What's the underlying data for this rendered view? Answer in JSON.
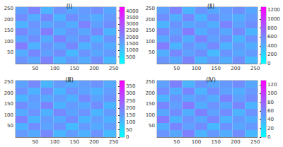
{
  "chart_data": [
    {
      "type": "heatmap",
      "title": "(Ⅰ)",
      "xlim": [
        0,
        256
      ],
      "ylim": [
        0,
        256
      ],
      "xticks": [
        50,
        100,
        150,
        200,
        250
      ],
      "yticks": [
        50,
        100,
        150,
        200,
        250
      ],
      "x_edges": [
        0,
        32,
        64,
        96,
        128,
        160,
        192,
        224,
        256
      ],
      "y_edges": [
        0,
        32,
        64,
        96,
        128,
        160,
        192,
        224,
        256
      ],
      "cells": [
        [
          1800,
          1500,
          2100,
          1300,
          1700,
          1400,
          1900,
          1200
        ],
        [
          1400,
          2000,
          1600,
          1900,
          1200,
          1800,
          1500,
          1700
        ],
        [
          2200,
          1300,
          1800,
          1500,
          2000,
          1300,
          1700,
          1400
        ],
        [
          1500,
          1900,
          1400,
          2100,
          1600,
          1900,
          1300,
          1800
        ],
        [
          2000,
          1600,
          2200,
          1400,
          1800,
          1500,
          2000,
          1300
        ],
        [
          1300,
          1800,
          1500,
          1700,
          1400,
          2100,
          1600,
          1900
        ],
        [
          1900,
          1400,
          2000,
          1300,
          1900,
          1600,
          1400,
          1700
        ],
        [
          1600,
          2100,
          1300,
          1800,
          1500,
          1700,
          1900,
          1500
        ]
      ],
      "colorbar": {
        "range": [
          0,
          4300
        ],
        "ticks": [
          500,
          1000,
          1500,
          2000,
          2500,
          3000,
          3500,
          4000
        ],
        "colors": [
          "#00ffff",
          "#ff00ff"
        ]
      }
    },
    {
      "type": "heatmap",
      "title": "(Ⅱ)",
      "xlim": [
        0,
        256
      ],
      "ylim": [
        0,
        256
      ],
      "xticks": [
        50,
        100,
        150,
        200,
        250
      ],
      "yticks": [
        50,
        100,
        150,
        200,
        250
      ],
      "x_edges": [
        0,
        32,
        64,
        96,
        128,
        160,
        192,
        224,
        256
      ],
      "y_edges": [
        0,
        32,
        64,
        96,
        128,
        160,
        192,
        224,
        256
      ],
      "cells": [
        [
          530,
          440,
          620,
          380,
          500,
          410,
          560,
          350
        ],
        [
          410,
          590,
          470,
          560,
          350,
          530,
          440,
          500
        ],
        [
          650,
          380,
          530,
          440,
          590,
          380,
          500,
          410
        ],
        [
          440,
          560,
          410,
          620,
          470,
          560,
          380,
          530
        ],
        [
          590,
          470,
          650,
          410,
          530,
          440,
          590,
          380
        ],
        [
          380,
          530,
          440,
          500,
          410,
          620,
          470,
          560
        ],
        [
          560,
          410,
          590,
          380,
          560,
          470,
          410,
          500
        ],
        [
          470,
          620,
          380,
          530,
          440,
          500,
          560,
          440
        ]
      ],
      "colorbar": {
        "range": [
          0,
          1270
        ],
        "ticks": [
          0,
          200,
          400,
          600,
          800,
          1000,
          1200
        ],
        "colors": [
          "#00ffff",
          "#ff00ff"
        ]
      }
    },
    {
      "type": "heatmap",
      "title": "(Ⅲ)",
      "xlim": [
        0,
        256
      ],
      "ylim": [
        0,
        256
      ],
      "xticks": [
        50,
        100,
        150,
        200,
        250
      ],
      "yticks": [
        50,
        100,
        150,
        200,
        250
      ],
      "x_edges": [
        0,
        32,
        64,
        96,
        128,
        160,
        192,
        224,
        256
      ],
      "y_edges": [
        0,
        32,
        64,
        96,
        128,
        160,
        192,
        224,
        256
      ],
      "cells": [
        [
          155,
          130,
          180,
          115,
          150,
          120,
          165,
          105
        ],
        [
          120,
          175,
          140,
          165,
          105,
          155,
          130,
          150
        ],
        [
          190,
          115,
          155,
          130,
          175,
          115,
          150,
          120
        ],
        [
          130,
          165,
          120,
          180,
          140,
          165,
          115,
          155
        ],
        [
          175,
          140,
          190,
          120,
          155,
          130,
          175,
          115
        ],
        [
          115,
          155,
          130,
          150,
          120,
          180,
          140,
          165
        ],
        [
          165,
          120,
          175,
          115,
          165,
          140,
          120,
          150
        ],
        [
          140,
          180,
          115,
          155,
          130,
          150,
          165,
          130
        ]
      ],
      "colorbar": {
        "range": [
          0,
          390
        ],
        "ticks": [
          0,
          50,
          100,
          150,
          200,
          250,
          300,
          350
        ],
        "colors": [
          "#00ffff",
          "#ff00ff"
        ]
      }
    },
    {
      "type": "heatmap",
      "title": "(Ⅳ)",
      "xlim": [
        0,
        256
      ],
      "ylim": [
        0,
        256
      ],
      "xticks": [
        50,
        100,
        150,
        200,
        250
      ],
      "yticks": [
        50,
        100,
        150,
        200,
        250
      ],
      "x_edges": [
        0,
        32,
        64,
        96,
        128,
        160,
        192,
        224,
        256
      ],
      "y_edges": [
        0,
        32,
        64,
        96,
        128,
        160,
        192,
        224,
        256
      ],
      "cells": [
        [
          54,
          45,
          64,
          39,
          52,
          42,
          58,
          36
        ],
        [
          42,
          61,
          48,
          58,
          36,
          55,
          45,
          52
        ],
        [
          67,
          39,
          55,
          45,
          61,
          39,
          52,
          42
        ],
        [
          45,
          58,
          42,
          64,
          48,
          58,
          39,
          55
        ],
        [
          61,
          48,
          67,
          42,
          55,
          45,
          61,
          39
        ],
        [
          39,
          55,
          45,
          52,
          42,
          64,
          48,
          58
        ],
        [
          58,
          42,
          61,
          39,
          58,
          48,
          42,
          52
        ],
        [
          48,
          64,
          39,
          55,
          45,
          52,
          58,
          45
        ]
      ],
      "colorbar": {
        "range": [
          0,
          130
        ],
        "ticks": [
          0,
          20,
          40,
          60,
          80,
          100,
          120
        ],
        "colors": [
          "#00ffff",
          "#ff00ff"
        ]
      }
    }
  ]
}
